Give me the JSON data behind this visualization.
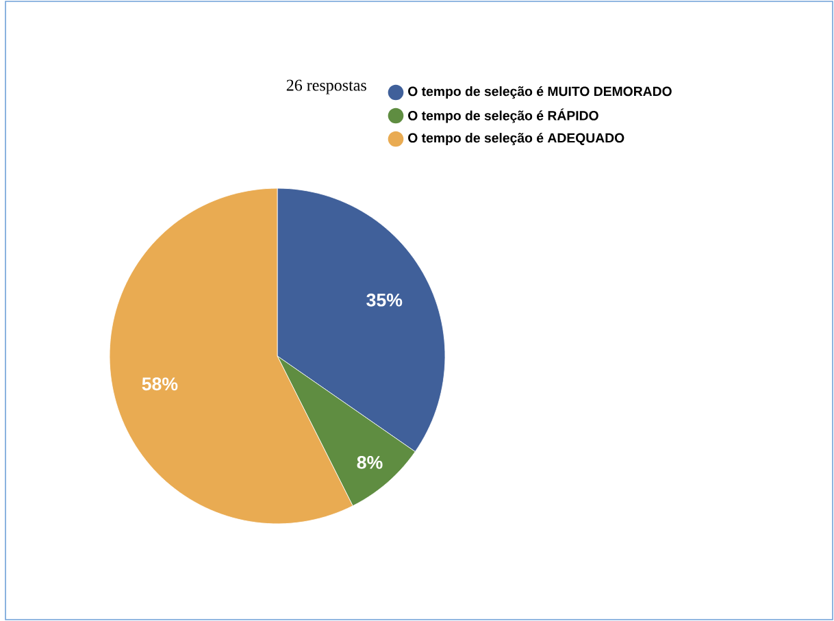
{
  "chart_data": {
    "type": "pie",
    "title": "26 respostas",
    "categories": [
      "O tempo de seleção é MUITO DEMORADO",
      "O tempo de seleção é RÁPIDO",
      "O tempo de seleção é ADEQUADO"
    ],
    "values": [
      35,
      8,
      58
    ],
    "value_labels": [
      "35%",
      "8%",
      "58%"
    ],
    "colors": [
      "#40609a",
      "#5f8d41",
      "#e9ab52"
    ],
    "legend": "top"
  }
}
